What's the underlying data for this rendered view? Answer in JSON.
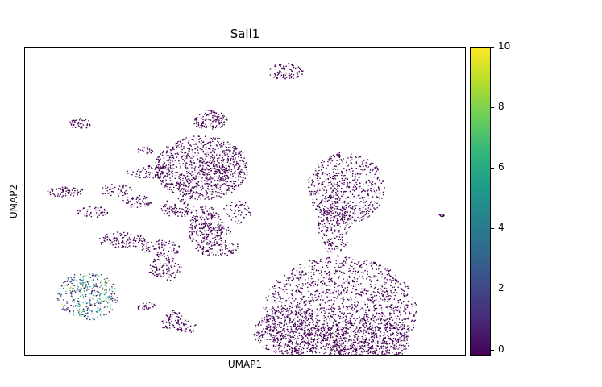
{
  "chart_data": {
    "type": "scatter",
    "title": "Sall1",
    "xlabel": "UMAP1",
    "ylabel": "UMAP2",
    "x_ticks": "none",
    "y_ticks": "none",
    "grid": false,
    "marker_color_default": "#440154",
    "colorbar": {
      "min": 0,
      "max": 10,
      "ticks": [
        "0",
        "2",
        "4",
        "6",
        "8",
        "10"
      ],
      "tick_values": [
        0,
        2,
        4,
        6,
        8,
        10
      ],
      "colormap": "viridis",
      "colors": [
        "#440154",
        "#482878",
        "#3e4989",
        "#31688e",
        "#26828e",
        "#1f9e89",
        "#35b779",
        "#6ece58",
        "#b5de2b",
        "#fde725"
      ]
    },
    "clusters": [
      {
        "cx": 220,
        "cy": 150,
        "rx": 58,
        "ry": 40,
        "n": 900,
        "expr": 0
      },
      {
        "cx": 392,
        "cy": 330,
        "rx": 96,
        "ry": 70,
        "n": 1700,
        "expr": 0
      },
      {
        "cx": 330,
        "cy": 355,
        "rx": 45,
        "ry": 30,
        "n": 400,
        "expr": 0
      },
      {
        "cx": 425,
        "cy": 365,
        "rx": 55,
        "ry": 30,
        "n": 500,
        "expr": 0
      },
      {
        "cx": 400,
        "cy": 175,
        "rx": 48,
        "ry": 45,
        "n": 600,
        "expr": 0
      },
      {
        "cx": 385,
        "cy": 220,
        "rx": 20,
        "ry": 40,
        "n": 220,
        "expr": 0
      },
      {
        "cx": 230,
        "cy": 90,
        "rx": 22,
        "ry": 12,
        "n": 130,
        "expr": 0
      },
      {
        "cx": 325,
        "cy": 30,
        "rx": 22,
        "ry": 10,
        "n": 90,
        "expr": 0
      },
      {
        "cx": 225,
        "cy": 225,
        "rx": 22,
        "ry": 28,
        "n": 220,
        "expr": 0
      },
      {
        "cx": 240,
        "cy": 155,
        "rx": 18,
        "ry": 12,
        "n": 80,
        "expr": 0
      },
      {
        "cx": 68,
        "cy": 95,
        "rx": 14,
        "ry": 7,
        "n": 45,
        "expr": 0
      },
      {
        "cx": 50,
        "cy": 180,
        "rx": 24,
        "ry": 6,
        "n": 70,
        "expr": 0
      },
      {
        "cx": 85,
        "cy": 205,
        "rx": 20,
        "ry": 7,
        "n": 50,
        "expr": 0
      },
      {
        "cx": 120,
        "cy": 240,
        "rx": 30,
        "ry": 10,
        "n": 120,
        "expr": 0
      },
      {
        "cx": 113,
        "cy": 178,
        "rx": 20,
        "ry": 8,
        "n": 50,
        "expr": 0
      },
      {
        "cx": 155,
        "cy": 155,
        "rx": 28,
        "ry": 8,
        "n": 80,
        "expr": 0
      },
      {
        "cx": 150,
        "cy": 128,
        "rx": 10,
        "ry": 5,
        "n": 25,
        "expr": 0
      },
      {
        "cx": 140,
        "cy": 192,
        "rx": 18,
        "ry": 8,
        "n": 55,
        "expr": 0
      },
      {
        "cx": 190,
        "cy": 200,
        "rx": 20,
        "ry": 12,
        "n": 80,
        "expr": 0
      },
      {
        "cx": 170,
        "cy": 250,
        "rx": 25,
        "ry": 10,
        "n": 80,
        "expr": 0
      },
      {
        "cx": 175,
        "cy": 275,
        "rx": 22,
        "ry": 16,
        "n": 100,
        "expr": 0
      },
      {
        "cx": 235,
        "cy": 230,
        "rx": 22,
        "ry": 10,
        "n": 60,
        "expr": 0
      },
      {
        "cx": 240,
        "cy": 250,
        "rx": 28,
        "ry": 10,
        "n": 90,
        "expr": 0
      },
      {
        "cx": 265,
        "cy": 205,
        "rx": 18,
        "ry": 14,
        "n": 55,
        "expr": 0
      },
      {
        "cx": 150,
        "cy": 322,
        "rx": 12,
        "ry": 6,
        "n": 30,
        "expr": 0
      },
      {
        "cx": 185,
        "cy": 335,
        "rx": 10,
        "ry": 8,
        "n": 30,
        "expr": 0
      },
      {
        "cx": 180,
        "cy": 345,
        "rx": 12,
        "ry": 7,
        "n": 30,
        "expr": 0
      },
      {
        "cx": 200,
        "cy": 348,
        "rx": 15,
        "ry": 8,
        "n": 40,
        "expr": 0
      },
      {
        "cx": 520,
        "cy": 209,
        "rx": 5,
        "ry": 2,
        "n": 10,
        "expr": 0
      },
      {
        "cx": 78,
        "cy": 310,
        "rx": 38,
        "ry": 30,
        "n": 380,
        "expr": 5
      }
    ]
  }
}
